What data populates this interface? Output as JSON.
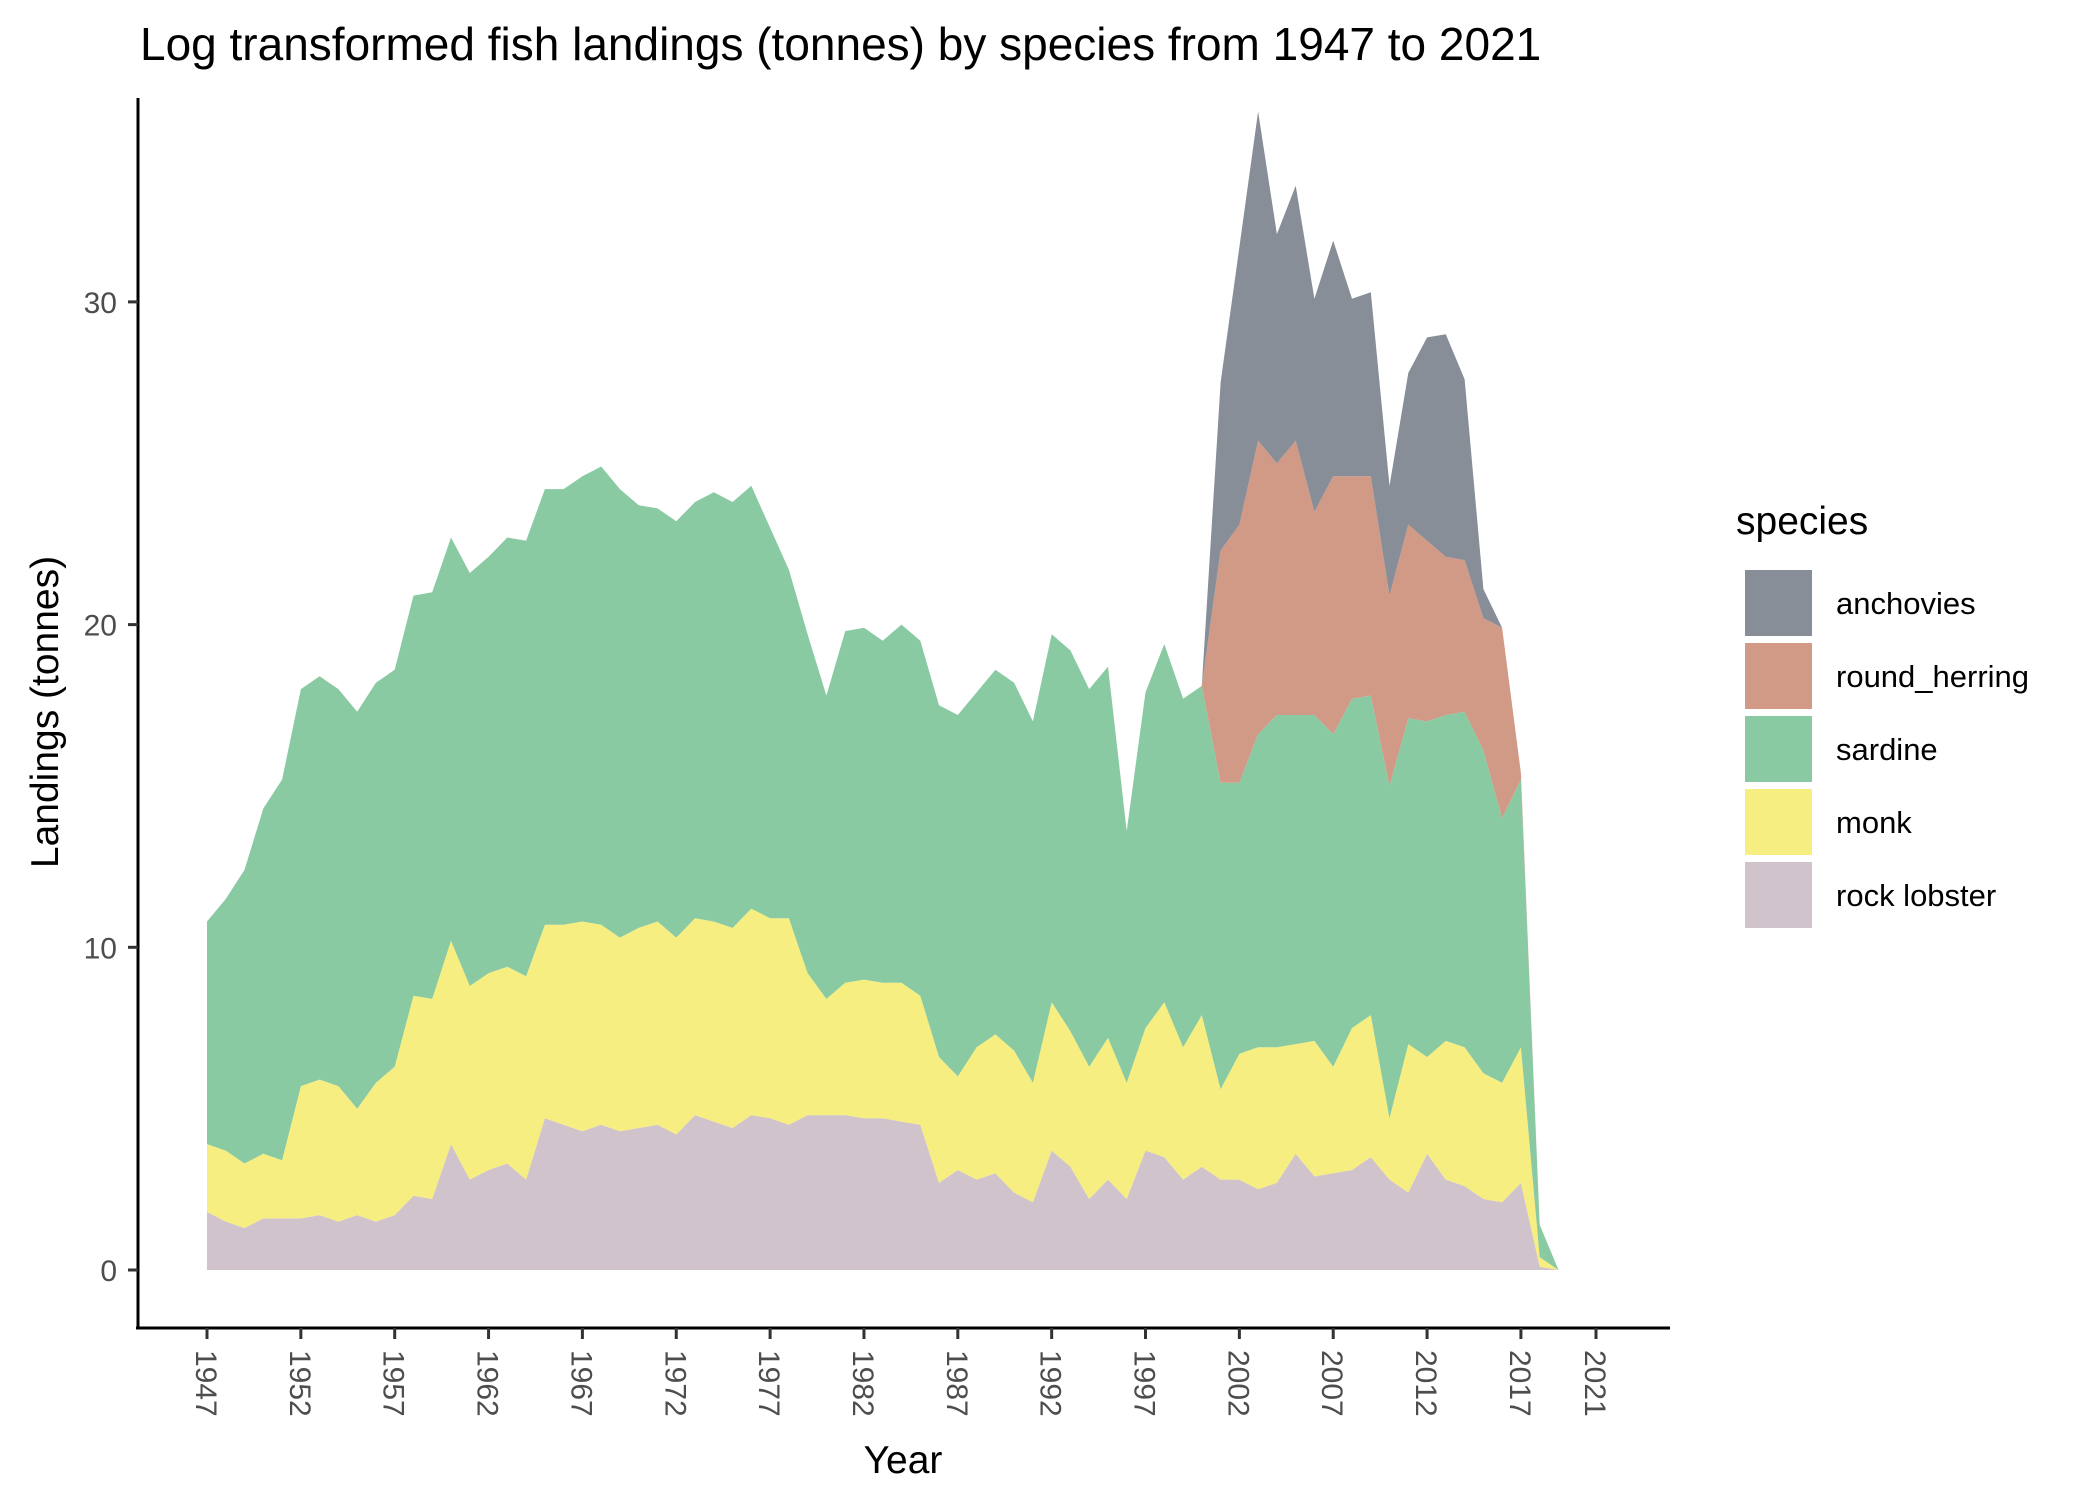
{
  "chart_data": {
    "type": "area",
    "stacked": true,
    "title": "Log transformed fish landings (tonnes) by species from 1947 to 2021",
    "xlabel": "Year",
    "ylabel": "Landings (tonnes)",
    "xlim": [
      1947,
      2021
    ],
    "ylim": [
      0,
      35
    ],
    "x_ticks": [
      "1947",
      "1952",
      "1957",
      "1962",
      "1967",
      "1972",
      "1977",
      "1982",
      "1987",
      "1992",
      "1997",
      "2002",
      "2007",
      "2012",
      "2017",
      "2021"
    ],
    "y_ticks": [
      "0",
      "10",
      "20",
      "30"
    ],
    "grid": false,
    "legend_title": "species",
    "legend_position": "right",
    "x": [
      1947,
      1948,
      1949,
      1950,
      1951,
      1952,
      1953,
      1954,
      1955,
      1956,
      1957,
      1958,
      1959,
      1960,
      1961,
      1962,
      1963,
      1964,
      1965,
      1966,
      1967,
      1968,
      1969,
      1970,
      1971,
      1972,
      1973,
      1974,
      1975,
      1976,
      1977,
      1978,
      1979,
      1980,
      1981,
      1982,
      1983,
      1984,
      1985,
      1986,
      1987,
      1988,
      1989,
      1990,
      1991,
      1992,
      1993,
      1994,
      1995,
      1996,
      1997,
      1998,
      1999,
      2000,
      2001,
      2002,
      2003,
      2004,
      2005,
      2006,
      2007,
      2008,
      2009,
      2010,
      2011,
      2012,
      2013,
      2014,
      2015,
      2016,
      2017,
      2018,
      2019
    ],
    "series": [
      {
        "name": "rock lobster",
        "color": "#d1c3cc",
        "values": [
          1.8,
          1.5,
          1.3,
          1.6,
          1.6,
          1.6,
          1.7,
          1.5,
          1.7,
          1.5,
          1.7,
          2.3,
          2.2,
          3.9,
          2.8,
          3.1,
          3.3,
          2.8,
          4.7,
          4.5,
          4.3,
          4.5,
          4.3,
          4.4,
          4.5,
          4.2,
          4.8,
          4.6,
          4.4,
          4.8,
          4.7,
          4.5,
          4.8,
          4.8,
          4.8,
          4.7,
          4.7,
          4.6,
          4.5,
          2.7,
          3.1,
          2.8,
          3.0,
          2.4,
          2.1,
          3.7,
          3.2,
          2.2,
          2.8,
          2.2,
          3.7,
          3.5,
          2.8,
          3.2,
          2.8,
          2.8,
          2.5,
          2.7,
          3.6,
          2.9,
          3.0,
          3.1,
          3.5,
          2.8,
          2.4,
          3.6,
          2.8,
          2.6,
          2.2,
          2.1,
          2.7,
          0.1,
          0.0
        ]
      },
      {
        "name": "monk",
        "color": "#f6ee80",
        "values": [
          2.1,
          2.2,
          2.0,
          2.0,
          1.8,
          4.1,
          4.2,
          4.2,
          3.3,
          4.3,
          4.6,
          6.2,
          6.2,
          6.3,
          6.0,
          6.1,
          6.1,
          6.3,
          6.0,
          6.2,
          6.5,
          6.2,
          6.0,
          6.2,
          6.3,
          6.1,
          6.1,
          6.2,
          6.2,
          6.4,
          6.2,
          6.4,
          4.4,
          3.6,
          4.1,
          4.3,
          4.2,
          4.3,
          4.0,
          3.9,
          2.9,
          4.1,
          4.3,
          4.4,
          3.7,
          4.6,
          4.2,
          4.1,
          4.4,
          3.6,
          3.8,
          4.8,
          4.1,
          4.7,
          2.8,
          3.9,
          4.4,
          4.2,
          3.4,
          4.2,
          3.3,
          4.4,
          4.4,
          1.9,
          4.6,
          3.0,
          4.3,
          4.3,
          3.9,
          3.7,
          4.2,
          0.3,
          0.0
        ]
      },
      {
        "name": "sardine",
        "color": "#89caa3",
        "values": [
          6.9,
          7.8,
          9.1,
          10.7,
          11.8,
          12.3,
          12.5,
          12.3,
          12.3,
          12.4,
          12.3,
          12.4,
          12.6,
          12.5,
          12.8,
          12.9,
          13.3,
          13.5,
          13.5,
          13.5,
          13.8,
          14.2,
          13.9,
          13.1,
          12.8,
          12.9,
          12.9,
          13.3,
          13.2,
          13.1,
          12.1,
          10.8,
          10.5,
          9.4,
          10.9,
          10.9,
          10.6,
          11.1,
          11.0,
          10.9,
          11.2,
          11.0,
          11.3,
          11.4,
          11.2,
          11.4,
          11.8,
          11.7,
          11.5,
          7.8,
          10.4,
          11.1,
          10.8,
          10.2,
          9.5,
          8.4,
          9.7,
          10.3,
          10.2,
          10.1,
          10.3,
          10.2,
          9.9,
          10.3,
          10.1,
          10.4,
          10.1,
          10.4,
          10.0,
          8.2,
          8.3,
          1.0,
          0.0
        ]
      },
      {
        "name": "round_herring",
        "color": "#d09a87",
        "values": [
          0,
          0,
          0,
          0,
          0,
          0,
          0,
          0,
          0,
          0,
          0,
          0,
          0,
          0,
          0,
          0,
          0,
          0,
          0,
          0,
          0,
          0,
          0,
          0,
          0,
          0,
          0,
          0,
          0,
          0,
          0,
          0,
          0,
          0,
          0,
          0,
          0,
          0,
          0,
          0,
          0,
          0,
          0,
          0,
          0,
          0,
          0,
          0,
          0,
          0,
          0,
          0,
          0,
          0,
          7.2,
          8.0,
          9.1,
          7.8,
          8.5,
          6.3,
          8.0,
          6.9,
          6.8,
          5.9,
          6.0,
          5.6,
          4.9,
          4.7,
          4.1,
          5.9,
          0.2,
          0.0,
          0.0
        ]
      },
      {
        "name": "anchovies",
        "color": "#878e98",
        "values": [
          0,
          0,
          0,
          0,
          0,
          0,
          0,
          0,
          0,
          0,
          0,
          0,
          0,
          0,
          0,
          0,
          0,
          0,
          0,
          0,
          0,
          0,
          0,
          0,
          0,
          0,
          0,
          0,
          0,
          0,
          0,
          0,
          0,
          0,
          0,
          0,
          0,
          0,
          0,
          0,
          0,
          0,
          0,
          0,
          0,
          0,
          0,
          0,
          0,
          0,
          0,
          0,
          0,
          0,
          5.2,
          8.6,
          10.2,
          7.1,
          7.9,
          6.6,
          7.3,
          5.5,
          5.7,
          3.4,
          4.7,
          6.3,
          6.9,
          5.6,
          0.9,
          0.0,
          0.0,
          0.0,
          0.0
        ]
      }
    ],
    "legend_order": [
      "anchovies",
      "round_herring",
      "sardine",
      "monk",
      "rock lobster"
    ]
  }
}
